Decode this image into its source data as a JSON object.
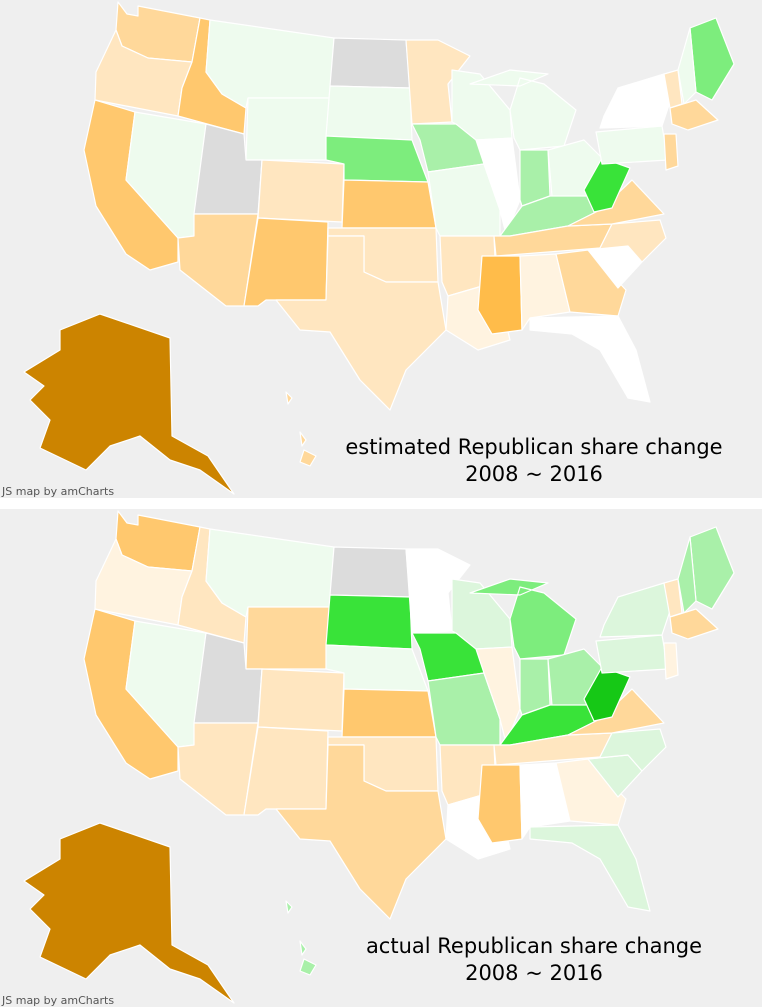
{
  "colors": {
    "background": "#efefef",
    "no_data": "#dcdcdc",
    "white": "#ffffff",
    "light_green": "#eefbee",
    "pale_green": "#dcf6dc",
    "mid_green": "#a9f0a9",
    "green": "#7ded7d",
    "bright_green": "#39e339",
    "dark_green": "#16c816",
    "cream": "#fff3e0",
    "light_orange": "#ffe6c0",
    "orange": "#ffd89a",
    "mid_orange": "#ffc86e",
    "strong_orange": "#ffbc4a",
    "dark_orange": "#cc8400"
  },
  "maps": [
    {
      "caption_line1": "estimated Republican share change",
      "caption_line2": "2008 ~ 2016",
      "credit": "JS map by amCharts",
      "states": {
        "WA": "orange",
        "OR": "light_orange",
        "CA": "mid_orange",
        "NV": "light_green",
        "ID": "mid_orange",
        "MT": "light_green",
        "WY": "light_green",
        "UT": "no_data",
        "AZ": "orange",
        "CO": "light_orange",
        "NM": "mid_orange",
        "ND": "no_data",
        "SD": "light_green",
        "NE": "green",
        "KS": "mid_orange",
        "OK": "light_orange",
        "TX": "light_orange",
        "MN": "light_orange",
        "IA": "mid_green",
        "MO": "light_green",
        "AR": "light_orange",
        "LA": "cream",
        "WI": "light_green",
        "IL": "white",
        "MI": "light_green",
        "IN": "mid_green",
        "OH": "light_green",
        "KY": "mid_green",
        "TN": "orange",
        "MS": "strong_orange",
        "AL": "cream",
        "GA": "orange",
        "FL": "white",
        "SC": "white",
        "NC": "light_orange",
        "VA": "orange",
        "WV": "bright_green",
        "PA": "light_green",
        "NY": "white",
        "ME": "green",
        "VT": "light_orange",
        "NH": "light_green",
        "MA": "orange",
        "NJ": "orange",
        "AK": "dark_orange",
        "HI": "orange"
      }
    },
    {
      "caption_line1": "actual Republican share change",
      "caption_line2": "2008 ~ 2016",
      "credit": "JS map by amCharts",
      "states": {
        "WA": "mid_orange",
        "OR": "cream",
        "CA": "mid_orange",
        "NV": "light_green",
        "ID": "light_orange",
        "MT": "light_green",
        "WY": "orange",
        "UT": "no_data",
        "AZ": "light_orange",
        "CO": "light_orange",
        "NM": "light_orange",
        "ND": "no_data",
        "SD": "bright_green",
        "NE": "light_green",
        "KS": "mid_orange",
        "OK": "light_orange",
        "TX": "orange",
        "MN": "white",
        "IA": "bright_green",
        "MO": "mid_green",
        "AR": "light_orange",
        "LA": "white",
        "WI": "pale_green",
        "IL": "cream",
        "MI": "green",
        "IN": "mid_green",
        "OH": "mid_green",
        "KY": "bright_green",
        "TN": "light_orange",
        "MS": "mid_orange",
        "AL": "white",
        "GA": "cream",
        "FL": "pale_green",
        "SC": "pale_green",
        "NC": "pale_green",
        "VA": "orange",
        "WV": "dark_green",
        "PA": "pale_green",
        "NY": "pale_green",
        "ME": "mid_green",
        "VT": "light_orange",
        "NH": "mid_green",
        "MA": "orange",
        "NJ": "cream",
        "AK": "dark_orange",
        "HI": "mid_green"
      }
    }
  ]
}
